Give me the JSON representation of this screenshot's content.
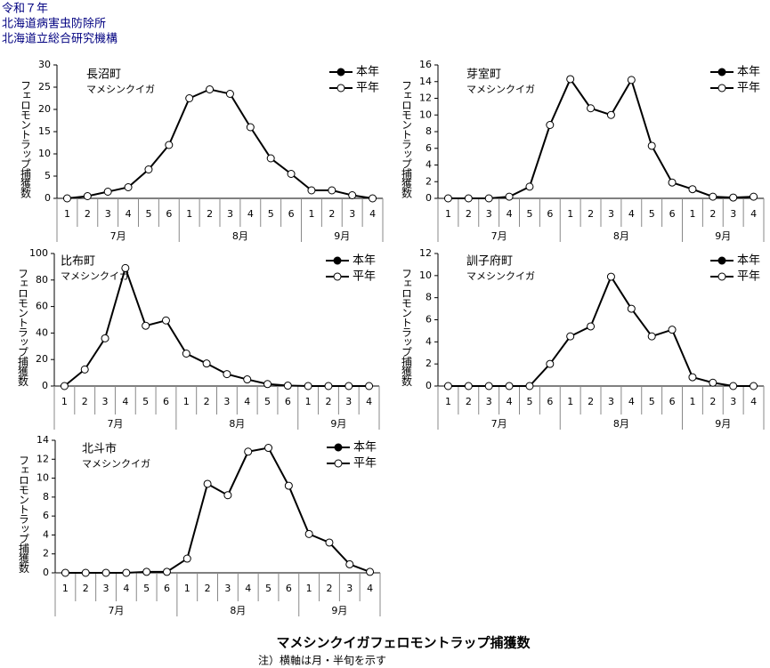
{
  "header": {
    "lines": [
      "令和７年",
      "北海道病害虫防除所",
      "北海道立総合研究機構"
    ]
  },
  "footer": {
    "title": "マメシンクイガフェロモントラップ捕獲数",
    "note": "注）横軸は月・半旬を示す"
  },
  "chart_data": [
    {
      "type": "line",
      "title": "長沼町",
      "subtitle": "マメシンクイガ",
      "y_label": "フェロモントラップ捕獲数",
      "category_groups": [
        {
          "name": "7月",
          "categories": [
            "1",
            "2",
            "3",
            "4",
            "5",
            "6"
          ]
        },
        {
          "name": "8月",
          "categories": [
            "1",
            "2",
            "3",
            "4",
            "5",
            "6"
          ]
        },
        {
          "name": "9月",
          "categories": [
            "1",
            "2",
            "3",
            "4"
          ]
        }
      ],
      "ylim": [
        0,
        30
      ],
      "yticks": [
        0,
        5,
        10,
        15,
        20,
        25,
        30
      ],
      "legend": "top-right",
      "series": [
        {
          "name": "本年",
          "color": "#000000",
          "marker": "filled",
          "values": [
            null,
            null,
            null,
            null,
            null,
            null,
            null,
            null,
            null,
            null,
            null,
            null,
            null,
            null,
            null,
            null
          ]
        },
        {
          "name": "平年",
          "color": "#000000",
          "marker": "open",
          "values": [
            0,
            0.5,
            1.5,
            2.5,
            6.5,
            12,
            22.5,
            24.5,
            23.5,
            16,
            9,
            5.5,
            1.8,
            1.8,
            0.7,
            0
          ]
        }
      ]
    },
    {
      "type": "line",
      "title": "芽室町",
      "subtitle": "マメシンクイガ",
      "y_label": "フェロモントラップ捕獲数",
      "category_groups": [
        {
          "name": "7月",
          "categories": [
            "1",
            "2",
            "3",
            "4",
            "5",
            "6"
          ]
        },
        {
          "name": "8月",
          "categories": [
            "1",
            "2",
            "3",
            "4",
            "5",
            "6"
          ]
        },
        {
          "name": "9月",
          "categories": [
            "1",
            "2",
            "3",
            "4"
          ]
        }
      ],
      "ylim": [
        0,
        16
      ],
      "yticks": [
        0,
        2,
        4,
        6,
        8,
        10,
        12,
        14,
        16
      ],
      "legend": "top-right",
      "series": [
        {
          "name": "本年",
          "color": "#000000",
          "marker": "filled",
          "values": [
            null,
            null,
            null,
            null,
            null,
            null,
            null,
            null,
            null,
            null,
            null,
            null,
            null,
            null,
            null,
            null
          ]
        },
        {
          "name": "平年",
          "color": "#000000",
          "marker": "open",
          "values": [
            0,
            0,
            0,
            0.2,
            1.4,
            8.8,
            14.3,
            10.8,
            10,
            14.2,
            6.3,
            1.9,
            1.1,
            0.2,
            0.1,
            0.2
          ]
        }
      ]
    },
    {
      "type": "line",
      "title": "比布町",
      "subtitle": "マメシンクイガ",
      "y_label": "フェロモントラップ捕獲数",
      "category_groups": [
        {
          "name": "7月",
          "categories": [
            "1",
            "2",
            "3",
            "4",
            "5",
            "6"
          ]
        },
        {
          "name": "8月",
          "categories": [
            "1",
            "2",
            "3",
            "4",
            "5",
            "6"
          ]
        },
        {
          "name": "9月",
          "categories": [
            "1",
            "2",
            "3",
            "4"
          ]
        }
      ],
      "ylim": [
        0,
        100
      ],
      "yticks": [
        0,
        20,
        40,
        60,
        80,
        100
      ],
      "legend": "top-right",
      "series": [
        {
          "name": "本年",
          "color": "#000000",
          "marker": "filled",
          "values": [
            null,
            null,
            null,
            null,
            null,
            null,
            null,
            null,
            null,
            null,
            null,
            null,
            null,
            null,
            null,
            null
          ]
        },
        {
          "name": "平年",
          "color": "#000000",
          "marker": "open",
          "values": [
            0,
            12.5,
            36,
            89,
            45.5,
            49.5,
            24.5,
            17,
            9,
            5,
            1.5,
            0.3,
            0,
            0,
            0,
            0
          ]
        }
      ]
    },
    {
      "type": "line",
      "title": "訓子府町",
      "subtitle": "マメシンクイガ",
      "y_label": "フェロモントラップ捕獲数",
      "category_groups": [
        {
          "name": "7月",
          "categories": [
            "1",
            "2",
            "3",
            "4",
            "5",
            "6"
          ]
        },
        {
          "name": "8月",
          "categories": [
            "1",
            "2",
            "3",
            "4",
            "5",
            "6"
          ]
        },
        {
          "name": "9月",
          "categories": [
            "1",
            "2",
            "3",
            "4"
          ]
        }
      ],
      "ylim": [
        0,
        12
      ],
      "yticks": [
        0,
        2,
        4,
        6,
        8,
        10,
        12
      ],
      "legend": "top-right",
      "series": [
        {
          "name": "本年",
          "color": "#000000",
          "marker": "filled",
          "values": [
            null,
            null,
            null,
            null,
            null,
            null,
            null,
            null,
            null,
            null,
            null,
            null,
            null,
            null,
            null,
            null
          ]
        },
        {
          "name": "平年",
          "color": "#000000",
          "marker": "open",
          "values": [
            0,
            0,
            0,
            0,
            0,
            2,
            4.5,
            5.4,
            9.9,
            7,
            4.5,
            5.1,
            0.8,
            0.3,
            0,
            0
          ]
        }
      ]
    },
    {
      "type": "line",
      "title": "北斗市",
      "subtitle": "マメシンクイガ",
      "y_label": "フェロモントラップ捕獲数",
      "category_groups": [
        {
          "name": "7月",
          "categories": [
            "1",
            "2",
            "3",
            "4",
            "5",
            "6"
          ]
        },
        {
          "name": "8月",
          "categories": [
            "1",
            "2",
            "3",
            "4",
            "5",
            "6"
          ]
        },
        {
          "name": "9月",
          "categories": [
            "1",
            "2",
            "3",
            "4"
          ]
        }
      ],
      "ylim": [
        0,
        14
      ],
      "yticks": [
        0,
        2,
        4,
        6,
        8,
        10,
        12,
        14
      ],
      "legend": "top-right",
      "series": [
        {
          "name": "本年",
          "color": "#000000",
          "marker": "filled",
          "values": [
            null,
            null,
            null,
            null,
            null,
            null,
            null,
            null,
            null,
            null,
            null,
            null,
            null,
            null,
            null,
            null
          ]
        },
        {
          "name": "平年",
          "color": "#000000",
          "marker": "open",
          "values": [
            0,
            0,
            0,
            0,
            0.1,
            0.1,
            1.5,
            9.4,
            8.2,
            12.8,
            13.2,
            9.2,
            4.1,
            3.2,
            0.9,
            0.1
          ]
        }
      ]
    }
  ]
}
